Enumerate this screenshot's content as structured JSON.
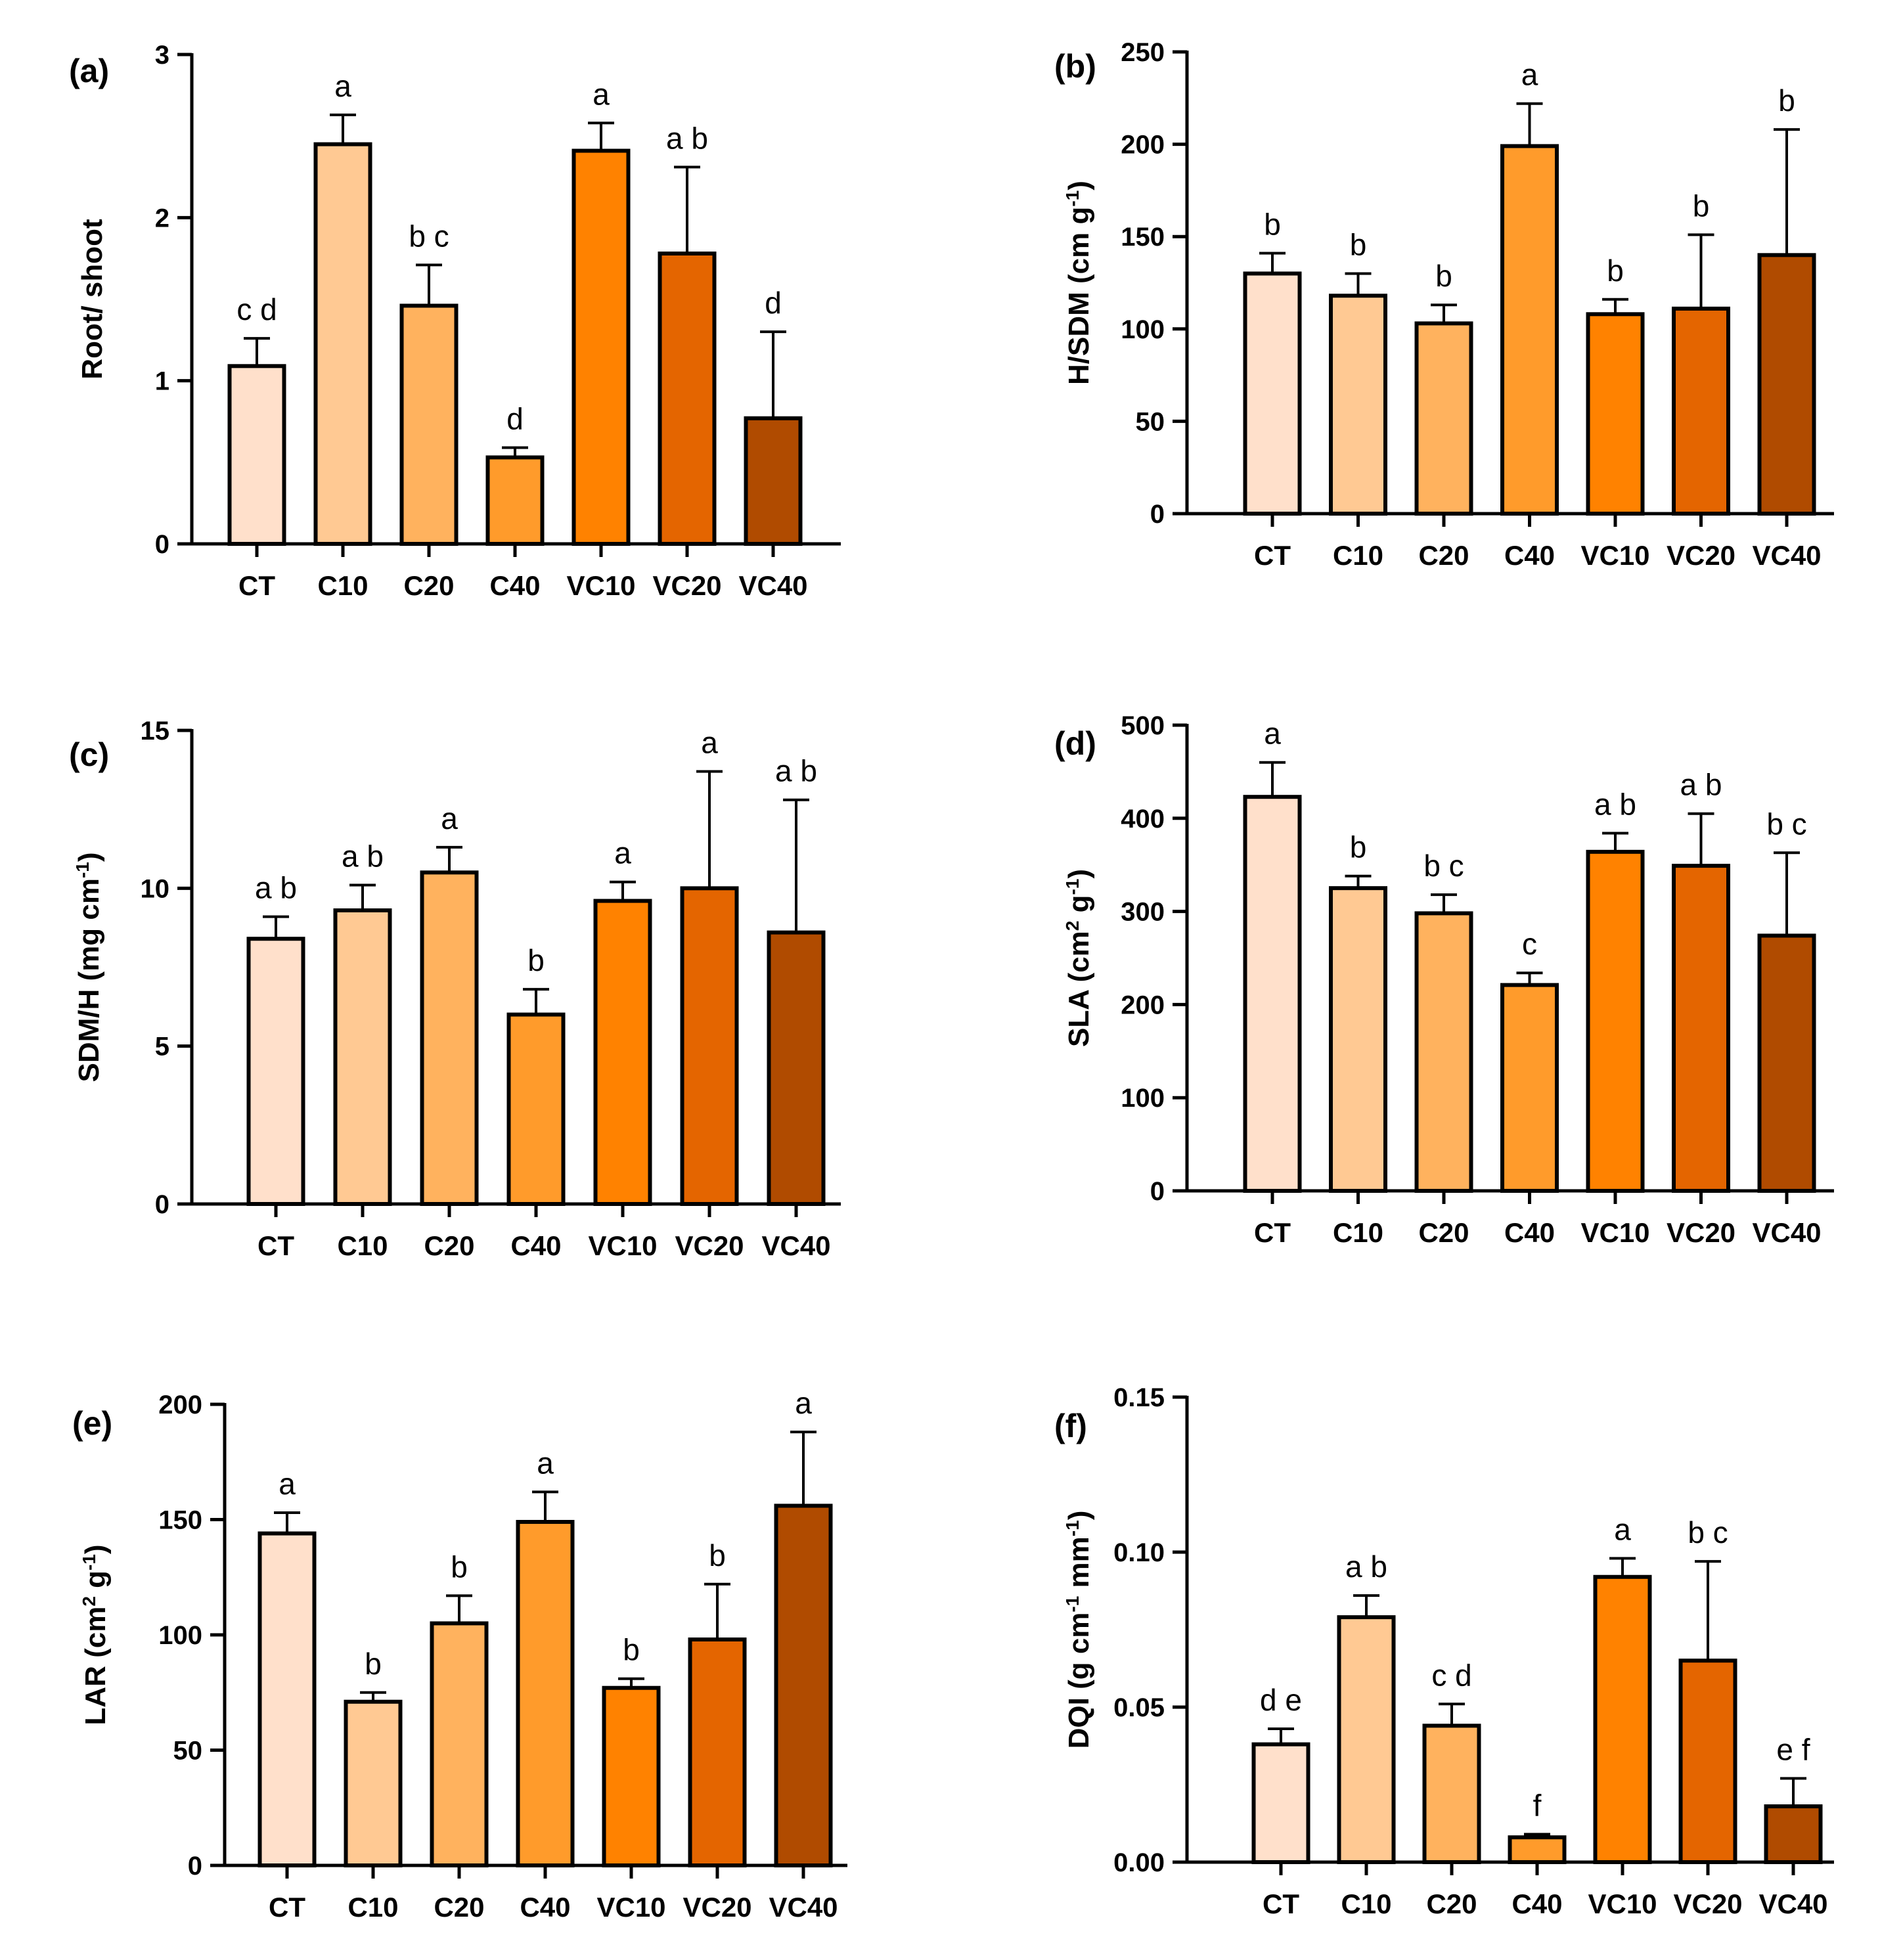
{
  "figure": {
    "categories": [
      "CT",
      "C10",
      "C20",
      "C40",
      "VC10",
      "VC20",
      "VC40"
    ],
    "colors": [
      "#FFE0CB",
      "#FFC993",
      "#FFB25E",
      "#FF9B2B",
      "#FF8200",
      "#E46500",
      "#B04B00"
    ]
  },
  "chart_data": [
    {
      "type": "bar",
      "panel": "(a)",
      "ylabel_parts": [
        {
          "t": "Root/ shoot"
        }
      ],
      "yticks": [
        0,
        1,
        2,
        3
      ],
      "tick_labels": [
        "0",
        "1",
        "2",
        "3"
      ],
      "ylim": [
        0,
        3
      ],
      "categories": [
        "CT",
        "C10",
        "C20",
        "C40",
        "VC10",
        "VC20",
        "VC40"
      ],
      "values": [
        1.09,
        2.45,
        1.46,
        0.53,
        2.41,
        1.78,
        0.77
      ],
      "errors": [
        0.17,
        0.18,
        0.25,
        0.06,
        0.17,
        0.53,
        0.53
      ],
      "significance": [
        "c d",
        "a",
        "b c",
        "d",
        "a",
        "a b",
        "d"
      ]
    },
    {
      "type": "bar",
      "panel": "(b)",
      "ylabel_parts": [
        {
          "t": "H/SDM (cm g"
        },
        {
          "t": "-1",
          "sup": true
        },
        {
          "t": ")"
        }
      ],
      "yticks": [
        0,
        50,
        100,
        150,
        200,
        250
      ],
      "tick_labels": [
        "0",
        "50",
        "100",
        "150",
        "200",
        "250"
      ],
      "ylim": [
        0,
        250
      ],
      "categories": [
        "CT",
        "C10",
        "C20",
        "C40",
        "VC10",
        "VC20",
        "VC40"
      ],
      "values": [
        130,
        118,
        103,
        199,
        108,
        111,
        140
      ],
      "errors": [
        11,
        12,
        10,
        23,
        8,
        40,
        68
      ],
      "significance": [
        "b",
        "b",
        "b",
        "a",
        "b",
        "b",
        "b"
      ]
    },
    {
      "type": "bar",
      "panel": "(c)",
      "ylabel_parts": [
        {
          "t": "SDM/H (mg cm"
        },
        {
          "t": "-1",
          "sup": true
        },
        {
          "t": ")"
        }
      ],
      "yticks": [
        0,
        5,
        10,
        15
      ],
      "tick_labels": [
        "0",
        "5",
        "10",
        "15"
      ],
      "ylim": [
        0,
        15
      ],
      "categories": [
        "CT",
        "C10",
        "C20",
        "C40",
        "VC10",
        "VC20",
        "VC40"
      ],
      "values": [
        8.4,
        9.3,
        10.5,
        6.0,
        9.6,
        10.0,
        8.6
      ],
      "errors": [
        0.7,
        0.8,
        0.8,
        0.8,
        0.6,
        3.7,
        4.2
      ],
      "significance": [
        "a b",
        "a b",
        "a",
        "b",
        "a",
        "a",
        "a b"
      ]
    },
    {
      "type": "bar",
      "panel": "(d)",
      "ylabel_parts": [
        {
          "t": "SLA (cm"
        },
        {
          "t": "2",
          "sup": true
        },
        {
          "t": " g"
        },
        {
          "t": "-1",
          "sup": true
        },
        {
          "t": ")"
        }
      ],
      "yticks": [
        0,
        100,
        200,
        300,
        400,
        500
      ],
      "tick_labels": [
        "0",
        "100",
        "200",
        "300",
        "400",
        "500"
      ],
      "ylim": [
        0,
        500
      ],
      "categories": [
        "CT",
        "C10",
        "C20",
        "C40",
        "VC10",
        "VC20",
        "VC40"
      ],
      "values": [
        423,
        325,
        298,
        221,
        364,
        349,
        274
      ],
      "errors": [
        37,
        13,
        20,
        13,
        20,
        56,
        89
      ],
      "significance": [
        "a",
        "b",
        "b c",
        "c",
        "a b",
        "a b",
        "b c"
      ]
    },
    {
      "type": "bar",
      "panel": "(e)",
      "ylabel_parts": [
        {
          "t": "LAR (cm"
        },
        {
          "t": "2",
          "sup": true
        },
        {
          "t": " g"
        },
        {
          "t": "-1",
          "sup": true
        },
        {
          "t": ")"
        }
      ],
      "yticks": [
        0,
        50,
        100,
        150,
        200
      ],
      "tick_labels": [
        "0",
        "50",
        "100",
        "150",
        "200"
      ],
      "ylim": [
        0,
        200
      ],
      "categories": [
        "CT",
        "C10",
        "C20",
        "C40",
        "VC10",
        "VC20",
        "VC40"
      ],
      "values": [
        144,
        71,
        105,
        149,
        77,
        98,
        156
      ],
      "errors": [
        9,
        4,
        12,
        13,
        4,
        24,
        32
      ],
      "significance": [
        "a",
        "b",
        "b",
        "a",
        "b",
        "b",
        "a"
      ]
    },
    {
      "type": "bar",
      "panel": "(f)",
      "ylabel_parts": [
        {
          "t": "DQI (g cm"
        },
        {
          "t": "-1",
          "sup": true
        },
        {
          "t": " mm"
        },
        {
          "t": "-1",
          "sup": true
        },
        {
          "t": ")"
        }
      ],
      "yticks": [
        0,
        0.05,
        0.1,
        0.15
      ],
      "tick_labels": [
        "0.00",
        "0.05",
        "0.10",
        "0.15"
      ],
      "ylim": [
        0,
        0.15
      ],
      "categories": [
        "CT",
        "C10",
        "C20",
        "C40",
        "VC10",
        "VC20",
        "VC40"
      ],
      "values": [
        0.038,
        0.079,
        0.044,
        0.008,
        0.092,
        0.065,
        0.018
      ],
      "errors": [
        0.005,
        0.007,
        0.007,
        0.001,
        0.006,
        0.032,
        0.009
      ],
      "significance": [
        "d e",
        "a b",
        "c d",
        "f",
        "a",
        "b c",
        "e f"
      ]
    }
  ]
}
